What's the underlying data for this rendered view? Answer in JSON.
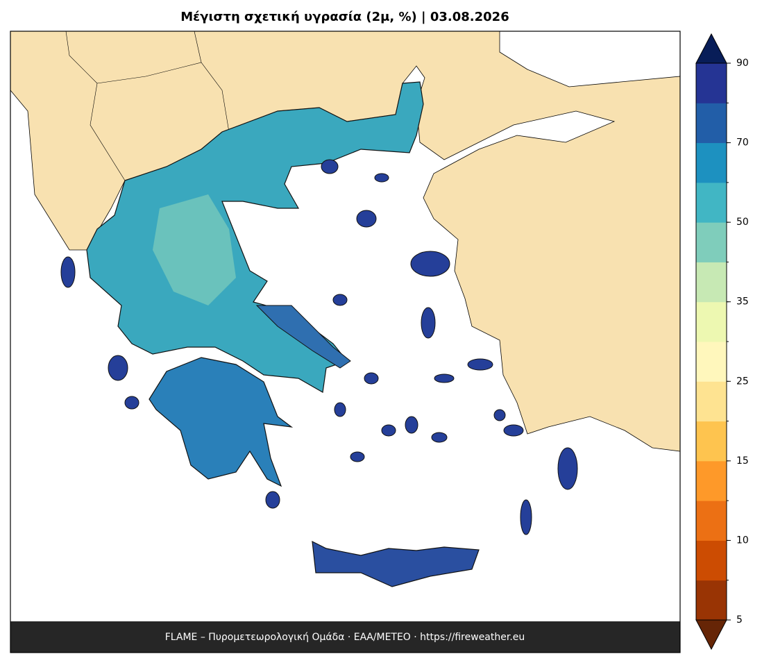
{
  "title": "Μέγιστη σχετική υγρασία (2μ, %)  |  03.08.2026",
  "footer": "FLAME – Πυρομετεωρολογική Ομάδα · ΕΑΑ/METEO · https://fireweather.eu",
  "colorbar": {
    "boundaries": [
      5,
      7.5,
      10,
      12.5,
      15,
      20,
      25,
      30,
      35,
      40,
      50,
      60,
      70,
      80,
      90
    ],
    "colors": [
      "#993404",
      "#cc4c02",
      "#ec7014",
      "#fe9929",
      "#fec44f",
      "#fee391",
      "#fff7bc",
      "#edf8b1",
      "#c7e9b4",
      "#7fcdbb",
      "#41b6c4",
      "#1d91c0",
      "#225ea8",
      "#253494"
    ],
    "under_color": "#662506",
    "over_color": "#081d58",
    "ticks": [
      5,
      10,
      15,
      25,
      35,
      50,
      70,
      90
    ]
  }
}
